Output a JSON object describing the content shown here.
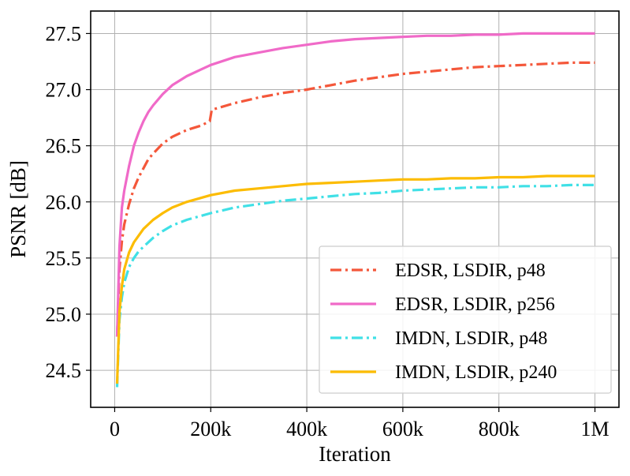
{
  "chart_data": {
    "type": "line",
    "title": "",
    "xlabel": "Iteration",
    "ylabel": "PSNR [dB]",
    "xlim": [
      -50000,
      1050000
    ],
    "ylim": [
      24.17,
      27.7
    ],
    "grid": true,
    "legend_position": "bottom-right",
    "x_ticks": [
      0,
      200000,
      400000,
      600000,
      800000,
      1000000
    ],
    "x_tick_labels": [
      "0",
      "200k",
      "400k",
      "600k",
      "800k",
      "1M"
    ],
    "y_ticks": [
      24.5,
      25.0,
      25.5,
      26.0,
      26.5,
      27.0,
      27.5
    ],
    "y_tick_labels": [
      "24.5",
      "25.0",
      "25.5",
      "26.0",
      "26.5",
      "27.0",
      "27.5"
    ],
    "series": [
      {
        "name": "EDSR, LSDIR, p48",
        "color": "#f4573a",
        "dash": "dashdot",
        "x": [
          5000,
          10000,
          15000,
          20000,
          30000,
          40000,
          50000,
          60000,
          70000,
          80000,
          100000,
          120000,
          150000,
          180000,
          198000,
          202000,
          250000,
          300000,
          350000,
          400000,
          450000,
          500000,
          550000,
          600000,
          650000,
          700000,
          750000,
          800000,
          850000,
          900000,
          950000,
          1000000
        ],
        "values": [
          24.8,
          25.4,
          25.65,
          25.8,
          25.98,
          26.12,
          26.22,
          26.3,
          26.38,
          26.43,
          26.52,
          26.58,
          26.64,
          26.68,
          26.72,
          26.82,
          26.88,
          26.93,
          26.97,
          27.0,
          27.04,
          27.08,
          27.11,
          27.14,
          27.16,
          27.18,
          27.2,
          27.21,
          27.22,
          27.23,
          27.24,
          27.24
        ]
      },
      {
        "name": "EDSR, LSDIR, p256",
        "color": "#f06ac8",
        "dash": "solid",
        "x": [
          5000,
          10000,
          15000,
          20000,
          30000,
          40000,
          50000,
          60000,
          70000,
          80000,
          100000,
          120000,
          150000,
          180000,
          200000,
          250000,
          300000,
          350000,
          400000,
          450000,
          500000,
          550000,
          600000,
          650000,
          700000,
          750000,
          800000,
          850000,
          900000,
          950000,
          1000000
        ],
        "values": [
          24.8,
          25.6,
          25.95,
          26.1,
          26.32,
          26.5,
          26.62,
          26.72,
          26.8,
          26.86,
          26.96,
          27.04,
          27.12,
          27.18,
          27.22,
          27.29,
          27.33,
          27.37,
          27.4,
          27.43,
          27.45,
          27.46,
          27.47,
          27.48,
          27.48,
          27.49,
          27.49,
          27.5,
          27.5,
          27.5,
          27.5
        ]
      },
      {
        "name": "IMDN, LSDIR, p48",
        "color": "#40e0e6",
        "dash": "dashdot",
        "x": [
          5000,
          10000,
          15000,
          20000,
          30000,
          40000,
          50000,
          60000,
          80000,
          100000,
          120000,
          150000,
          200000,
          250000,
          300000,
          350000,
          400000,
          450000,
          500000,
          550000,
          600000,
          650000,
          700000,
          750000,
          800000,
          850000,
          900000,
          950000,
          1000000
        ],
        "values": [
          24.35,
          24.95,
          25.15,
          25.28,
          25.42,
          25.5,
          25.56,
          25.6,
          25.68,
          25.74,
          25.79,
          25.84,
          25.9,
          25.95,
          25.98,
          26.01,
          26.03,
          26.05,
          26.07,
          26.08,
          26.1,
          26.11,
          26.12,
          26.13,
          26.13,
          26.14,
          26.14,
          26.15,
          26.15
        ]
      },
      {
        "name": "IMDN, LSDIR, p240",
        "color": "#fcbc02",
        "dash": "solid",
        "x": [
          5000,
          10000,
          15000,
          20000,
          30000,
          40000,
          50000,
          60000,
          80000,
          100000,
          120000,
          150000,
          200000,
          250000,
          300000,
          350000,
          400000,
          450000,
          500000,
          550000,
          600000,
          650000,
          700000,
          750000,
          800000,
          850000,
          900000,
          950000,
          1000000
        ],
        "values": [
          24.38,
          25.02,
          25.25,
          25.4,
          25.55,
          25.64,
          25.7,
          25.76,
          25.84,
          25.9,
          25.95,
          26.0,
          26.06,
          26.1,
          26.12,
          26.14,
          26.16,
          26.17,
          26.18,
          26.19,
          26.2,
          26.2,
          26.21,
          26.21,
          26.22,
          26.22,
          26.23,
          26.23,
          26.23
        ]
      }
    ]
  }
}
